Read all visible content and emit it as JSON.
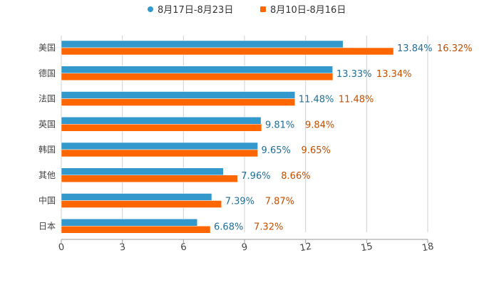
{
  "chart_data": {
    "type": "bar",
    "orientation": "horizontal",
    "categories": [
      "美国",
      "德国",
      "法国",
      "英国",
      "韩国",
      "其他",
      "中国",
      "日本"
    ],
    "series": [
      {
        "name": "8月17日-8月23日",
        "color": "#3399cc",
        "values": [
          13.84,
          13.33,
          11.48,
          9.81,
          9.65,
          7.96,
          7.39,
          6.68
        ]
      },
      {
        "name": "8月10日-8月16日",
        "color": "#ff6600",
        "values": [
          16.32,
          13.34,
          11.48,
          9.84,
          9.65,
          8.66,
          7.87,
          7.32
        ]
      }
    ],
    "xlim": [
      0,
      18
    ],
    "xticks": [
      0,
      3,
      6,
      9,
      12,
      15,
      18
    ],
    "value_suffix": "%",
    "grid": true,
    "legend_position": "top-center"
  }
}
